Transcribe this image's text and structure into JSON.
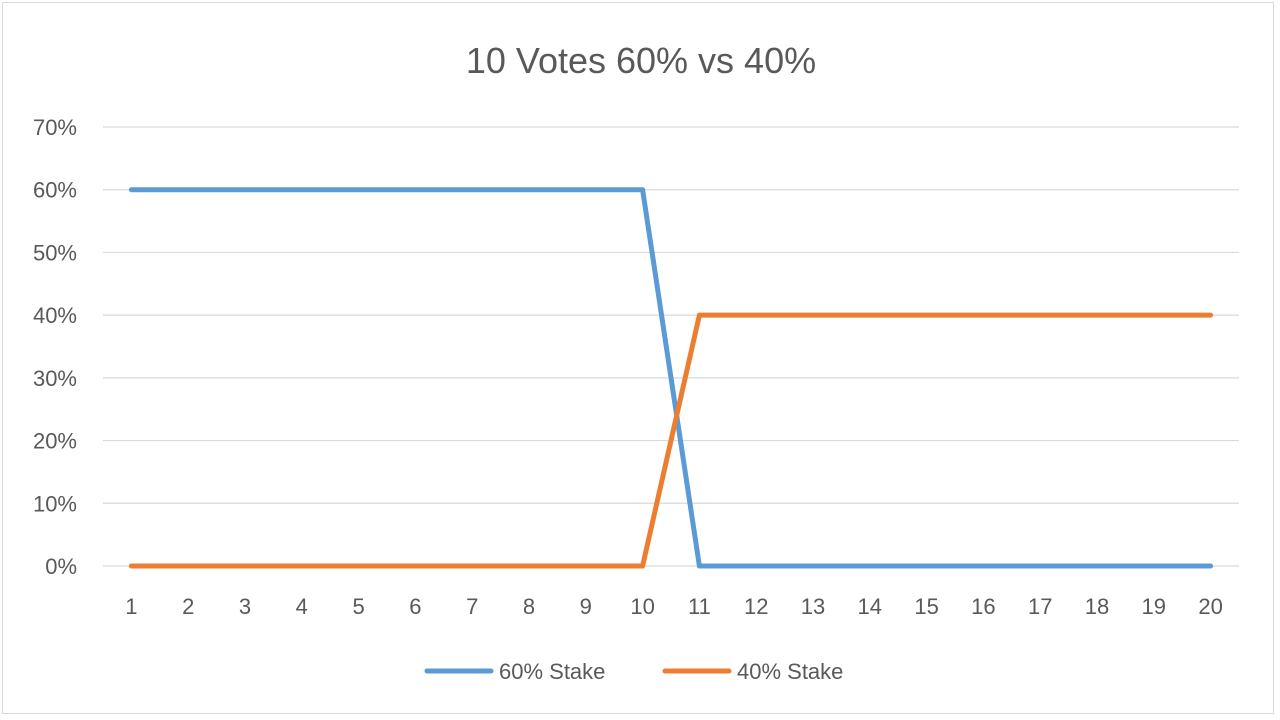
{
  "chart_data": {
    "type": "line",
    "title": "10 Votes 60% vs 40%",
    "xlabel": "",
    "ylabel": "",
    "categories": [
      "1",
      "2",
      "3",
      "4",
      "5",
      "6",
      "7",
      "8",
      "9",
      "10",
      "11",
      "12",
      "13",
      "14",
      "15",
      "16",
      "17",
      "18",
      "19",
      "20"
    ],
    "yticks": [
      "0%",
      "10%",
      "20%",
      "30%",
      "40%",
      "50%",
      "60%",
      "70%"
    ],
    "ylim": [
      0,
      0.7
    ],
    "grid": true,
    "legend_position": "bottom",
    "series": [
      {
        "name": "60% Stake",
        "color": "#5b9bd5",
        "values": [
          0.6,
          0.6,
          0.6,
          0.6,
          0.6,
          0.6,
          0.6,
          0.6,
          0.6,
          0.6,
          0,
          0,
          0,
          0,
          0,
          0,
          0,
          0,
          0,
          0
        ]
      },
      {
        "name": "40% Stake",
        "color": "#ed7d31",
        "values": [
          0,
          0,
          0,
          0,
          0,
          0,
          0,
          0,
          0,
          0,
          0.4,
          0.4,
          0.4,
          0.4,
          0.4,
          0.4,
          0.4,
          0.4,
          0.4,
          0.4
        ]
      }
    ]
  }
}
